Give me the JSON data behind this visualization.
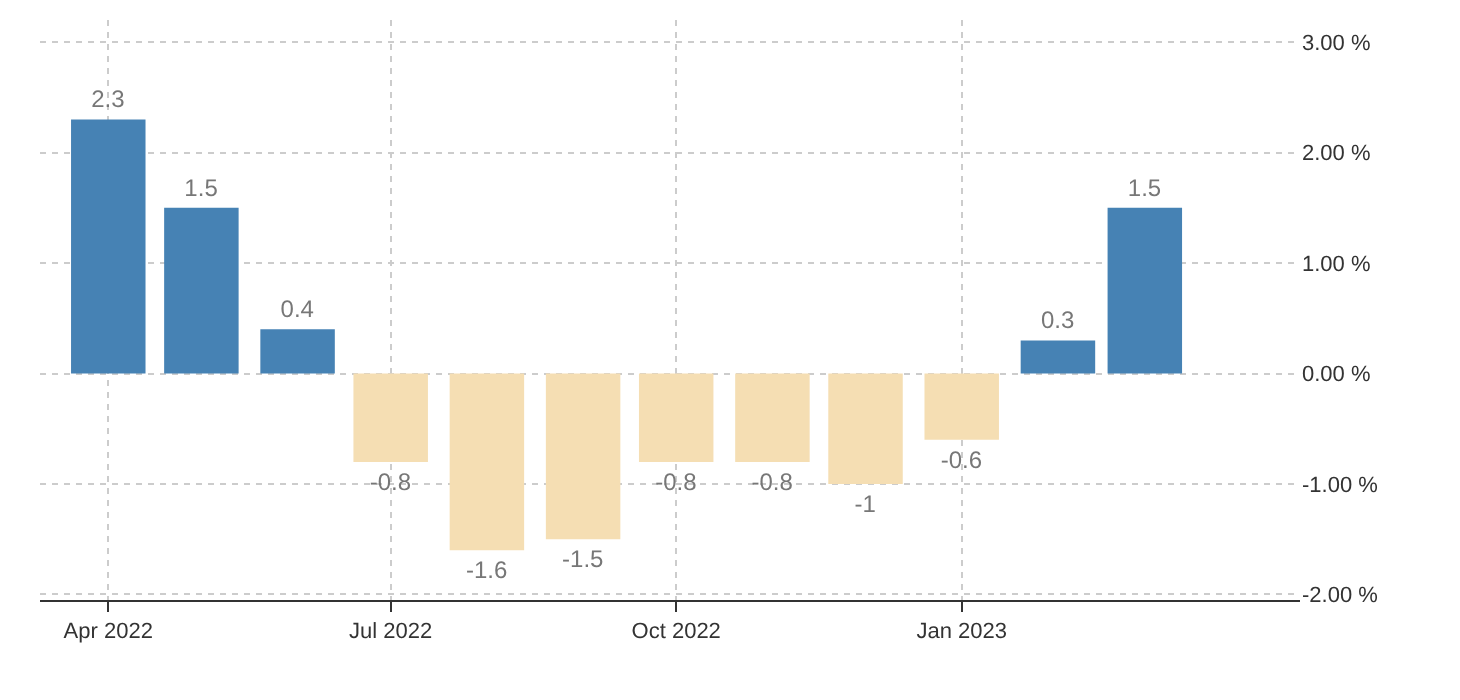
{
  "chart_data": {
    "type": "bar",
    "x": [
      "2022-04",
      "2022-05",
      "2022-06",
      "2022-07",
      "2022-08",
      "2022-09",
      "2022-10",
      "2022-11",
      "2022-12",
      "2023-01",
      "2023-02",
      "2023-03"
    ],
    "values": [
      2.3,
      1.5,
      0.4,
      -0.8,
      -1.6,
      -1.5,
      -0.8,
      -0.8,
      -1,
      -0.6,
      0.3,
      1.5
    ],
    "colors": [
      "#4682b4",
      "#4682b4",
      "#4682b4",
      "#f5deb3",
      "#f5deb3",
      "#f5deb3",
      "#f5deb3",
      "#f5deb3",
      "#f5deb3",
      "#f5deb3",
      "#4682b4",
      "#4682b4"
    ],
    "data_labels": true,
    "xlim": [
      "2022-03-10",
      "2023-04-20"
    ],
    "xticks": [
      {
        "value": "2022-04",
        "label": "Apr 2022"
      },
      {
        "value": "2022-07",
        "label": "Jul 2022"
      },
      {
        "value": "2022-10",
        "label": "Oct 2022"
      },
      {
        "value": "2023-01",
        "label": "Jan 2023"
      }
    ],
    "ylim": [
      -2.05,
      3.2
    ],
    "yticks": [
      {
        "value": -2,
        "label": "-2.00 %"
      },
      {
        "value": -1,
        "label": "-1.00 %"
      },
      {
        "value": 0,
        "label": "0.00 %"
      },
      {
        "value": 1,
        "label": "1.00 %"
      },
      {
        "value": 2,
        "label": "2.00 %"
      },
      {
        "value": 3,
        "label": "3.00 %"
      }
    ],
    "grid": true
  }
}
